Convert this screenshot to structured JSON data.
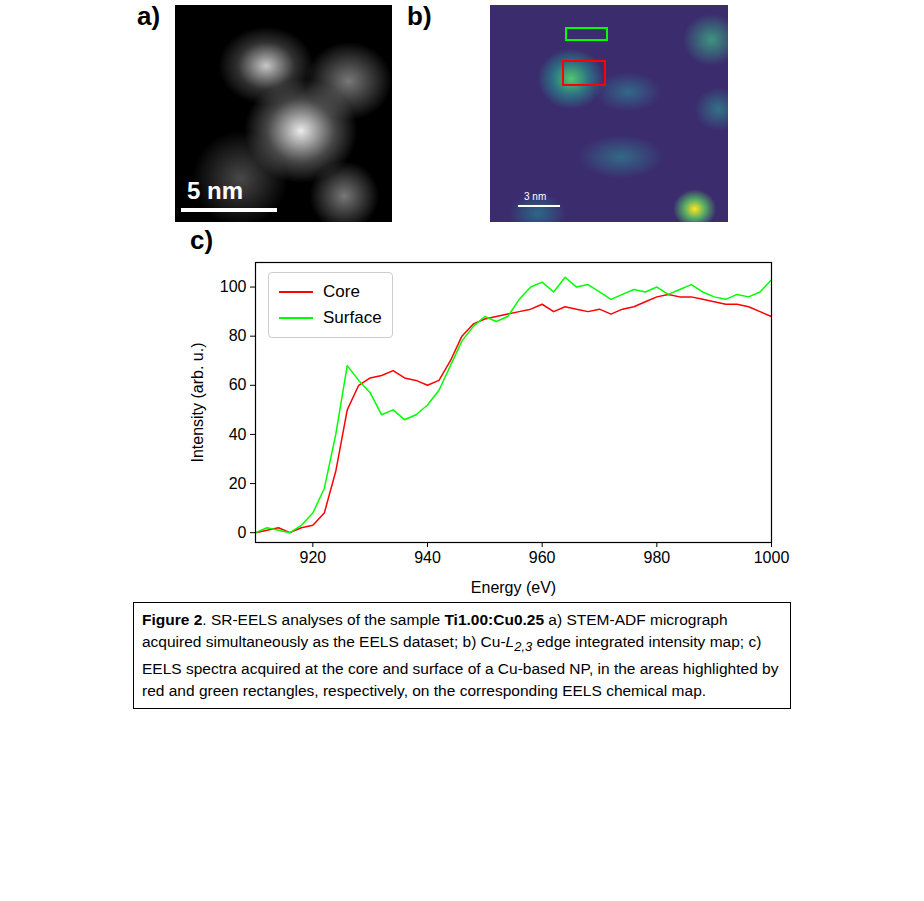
{
  "panels": [
    {
      "letter": "a)",
      "scale_bar": "5 nm"
    },
    {
      "letter": "b)",
      "scale_bar": "3 nm"
    },
    {
      "letter": "c)"
    }
  ],
  "chart_data": {
    "type": "line",
    "x_label": "Energy (eV)",
    "y_label": "Intensity (arb. u.)",
    "x": [
      910,
      912,
      914,
      916,
      918,
      920,
      922,
      924,
      926,
      928,
      930,
      932,
      934,
      936,
      938,
      940,
      942,
      944,
      946,
      948,
      950,
      952,
      954,
      956,
      958,
      960,
      962,
      964,
      966,
      968,
      970,
      972,
      974,
      976,
      978,
      980,
      982,
      984,
      986,
      988,
      990,
      992,
      994,
      996,
      998,
      1000
    ],
    "series": [
      {
        "name": "Core",
        "color": "#ff0000",
        "values": [
          0,
          1,
          2,
          0,
          2,
          3,
          8,
          25,
          50,
          60,
          63,
          64,
          66,
          63,
          62,
          60,
          62,
          70,
          80,
          85,
          87,
          88,
          89,
          90,
          91,
          93,
          90,
          92,
          91,
          90,
          91,
          89,
          91,
          92,
          94,
          96,
          97,
          96,
          96,
          95,
          94,
          93,
          93,
          92,
          90,
          88
        ]
      },
      {
        "name": "Surface",
        "color": "#00ff00",
        "values": [
          0,
          2,
          1,
          0,
          3,
          8,
          18,
          40,
          68,
          62,
          57,
          48,
          50,
          46,
          48,
          52,
          58,
          68,
          78,
          84,
          88,
          86,
          88,
          95,
          100,
          102,
          98,
          104,
          100,
          101,
          98,
          95,
          97,
          99,
          98,
          100,
          97,
          99,
          101,
          98,
          96,
          95,
          97,
          96,
          98,
          103
        ]
      }
    ],
    "xlim": [
      910,
      1000
    ],
    "ylim": [
      -4,
      110
    ],
    "xticks": [
      920,
      940,
      960,
      980,
      1000
    ],
    "yticks": [
      0,
      20,
      40,
      60,
      80,
      100
    ],
    "grid": false,
    "legend": "upper left"
  },
  "caption": [
    {
      "text": "Figure 2",
      "style": "bold"
    },
    {
      "text": ". SR-EELS analyses of the sample ",
      "style": "normal"
    },
    {
      "text": "Ti1.00:Cu0.25",
      "style": "bold"
    },
    {
      "text": " a) STEM-ADF micrograph acquired simultaneously as the EELS dataset; b) Cu-",
      "style": "normal"
    },
    {
      "text": "L",
      "style": "italic"
    },
    {
      "text": "2,3",
      "style": "italic-sub"
    },
    {
      "text": " edge integrated intensity map; c) EELS spectra acquired at the core and surface of a Cu-based NP, in the areas highlighted by red and green rectangles, respectively, on the corresponding EELS chemical map.",
      "style": "normal"
    }
  ]
}
